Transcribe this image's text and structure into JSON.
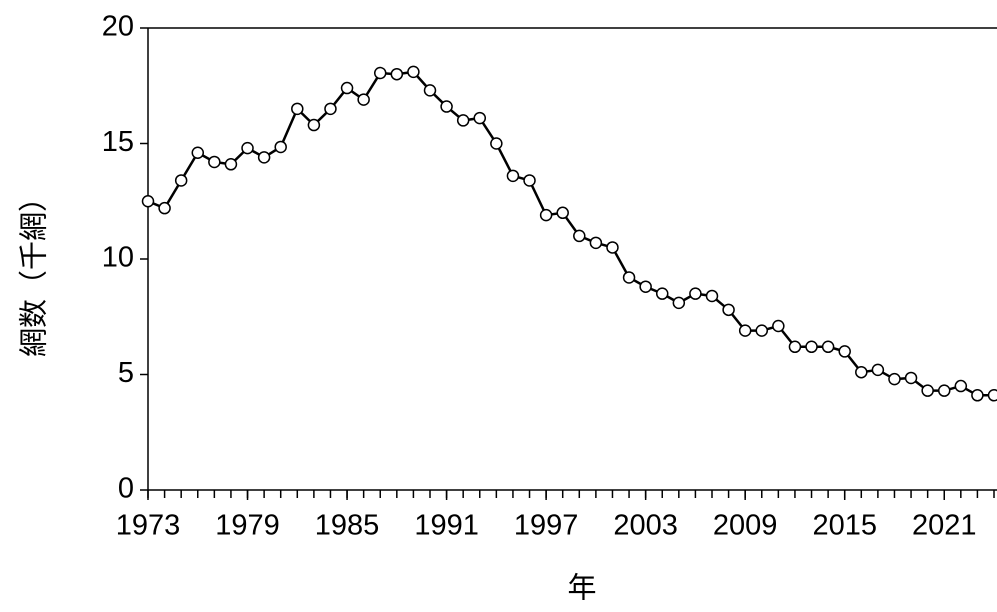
{
  "chart_data": {
    "type": "line",
    "xlabel": "年",
    "ylabel": "網数（千網）",
    "x": [
      1973,
      1974,
      1975,
      1976,
      1977,
      1978,
      1979,
      1980,
      1981,
      1982,
      1983,
      1984,
      1985,
      1986,
      1987,
      1988,
      1989,
      1990,
      1991,
      1992,
      1993,
      1994,
      1995,
      1996,
      1997,
      1998,
      1999,
      2000,
      2001,
      2002,
      2003,
      2004,
      2005,
      2006,
      2007,
      2008,
      2009,
      2010,
      2011,
      2012,
      2013,
      2014,
      2015,
      2016,
      2017,
      2018,
      2019,
      2020,
      2021,
      2022,
      2023,
      2024
    ],
    "series": [
      {
        "color": "#000000",
        "values": [
          12.5,
          12.2,
          13.4,
          14.6,
          14.2,
          14.1,
          14.8,
          14.4,
          14.85,
          16.5,
          15.8,
          16.5,
          17.4,
          16.9,
          18.05,
          18.0,
          18.1,
          17.3,
          16.6,
          16.0,
          16.1,
          15.0,
          13.6,
          13.4,
          11.9,
          12.0,
          11.0,
          10.7,
          10.5,
          9.2,
          8.8,
          8.5,
          8.1,
          8.5,
          8.4,
          7.8,
          6.9,
          6.9,
          7.1,
          6.2,
          6.2,
          6.2,
          6.0,
          5.1,
          5.2,
          4.8,
          4.85,
          4.3,
          4.3,
          4.5,
          4.1,
          4.1
        ]
      }
    ],
    "xlim": [
      1973,
      2024
    ],
    "xticks": [
      1973,
      1979,
      1985,
      1991,
      1997,
      2003,
      2009,
      2015,
      2021
    ],
    "ylim": [
      0,
      20
    ],
    "yticks": [
      0,
      5,
      10,
      15,
      20
    ]
  }
}
